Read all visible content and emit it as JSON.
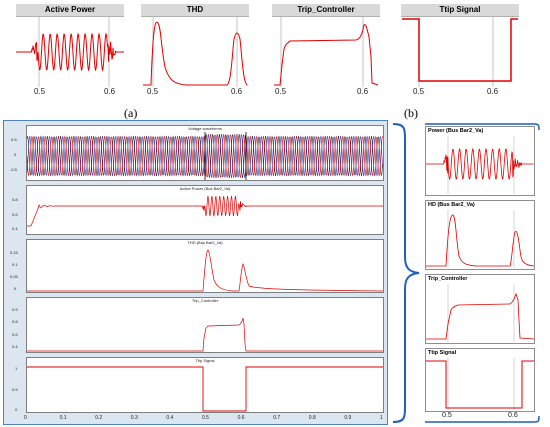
{
  "top_panels": [
    {
      "title": "Active Power",
      "ticks": [
        "0.5",
        "0.6"
      ]
    },
    {
      "title": "THD",
      "ticks": [
        "0.5",
        "0.6"
      ]
    },
    {
      "title": "Trip_Controller",
      "ticks": [
        "0.5",
        "0.6"
      ]
    },
    {
      "title": "Ttip Signal",
      "ticks": [
        "0.5",
        "0.6"
      ]
    }
  ],
  "captions": {
    "a": "(a)",
    "b": "(b)"
  },
  "scope": {
    "subplots": [
      {
        "title": "Voltage waveforms",
        "yticks": [
          "0.5",
          "0",
          "-0.5"
        ]
      },
      {
        "title": "Active Power (Bus Bar2_Va)",
        "yticks": [
          "0.8",
          "0.6",
          "0.4"
        ]
      },
      {
        "title": "THD (Bus Bar2_Va)",
        "yticks": [
          "0.15",
          "0.1",
          "0.05",
          "0"
        ]
      },
      {
        "title": "Trip_Controller",
        "yticks": [
          "0.9",
          "0.8",
          "0.6",
          "0.4"
        ]
      },
      {
        "title": "Ttip Signal",
        "yticks": [
          "1",
          "0.5",
          "0"
        ]
      }
    ],
    "xticks": [
      "0",
      "0.1",
      "0.2",
      "0.3",
      "0.4",
      "0.5",
      "0.6",
      "0.7",
      "0.8",
      "0.9",
      "1"
    ]
  },
  "right_panels": [
    {
      "title": "Power (Bus Bar2_Va)"
    },
    {
      "title": "HD (Bus Bar2_Va)"
    },
    {
      "title": "Trip_Controller"
    },
    {
      "title": "Ttip Signal"
    }
  ],
  "right_ticks": [
    "0.5",
    "0.6"
  ],
  "colors": {
    "signal": "#e00000",
    "phase_b": "#3030c0",
    "phase_c": "#202020",
    "frame": "#4f81bd",
    "brace": "#1f5fbf"
  }
}
